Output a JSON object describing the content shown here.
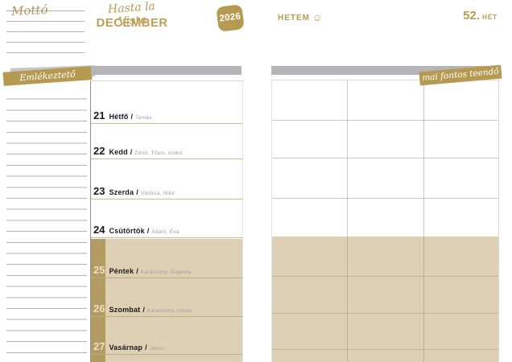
{
  "motto_label": "Mottó",
  "reminder_banner": "Emlékeztető",
  "todo_banner": "mai fontos teendő",
  "separator": "/",
  "header": {
    "script_title": "Hasta la Vista",
    "month": "December",
    "year": "2026",
    "my_week": "Hetem",
    "smiley_icon": "☺",
    "week_number": "52.",
    "week_label": "hét"
  },
  "days": [
    {
      "num": "21",
      "name": "Hétfő",
      "names": "Tamás"
    },
    {
      "num": "22",
      "name": "Kedd",
      "names": "Zénó, Tifani, Anikó"
    },
    {
      "num": "23",
      "name": "Szerda",
      "names": "Viktória, Niké"
    },
    {
      "num": "24",
      "name": "Csütörtök",
      "names": "Ádám, Éva"
    },
    {
      "num": "25",
      "name": "Péntek",
      "names": "Karácsony, Eugénia"
    },
    {
      "num": "26",
      "name": "Szombat",
      "names": "Karácsony, István"
    },
    {
      "num": "27",
      "name": "Vasárnap",
      "names": "János"
    }
  ],
  "colors": {
    "gold": "#b69a52",
    "gutter_gold": "#b49b62",
    "beige": "#ddd0b4",
    "gray_bar": "#b5b4b6",
    "text_gold": "#b89a55",
    "line_tan": "#cdbb90"
  }
}
